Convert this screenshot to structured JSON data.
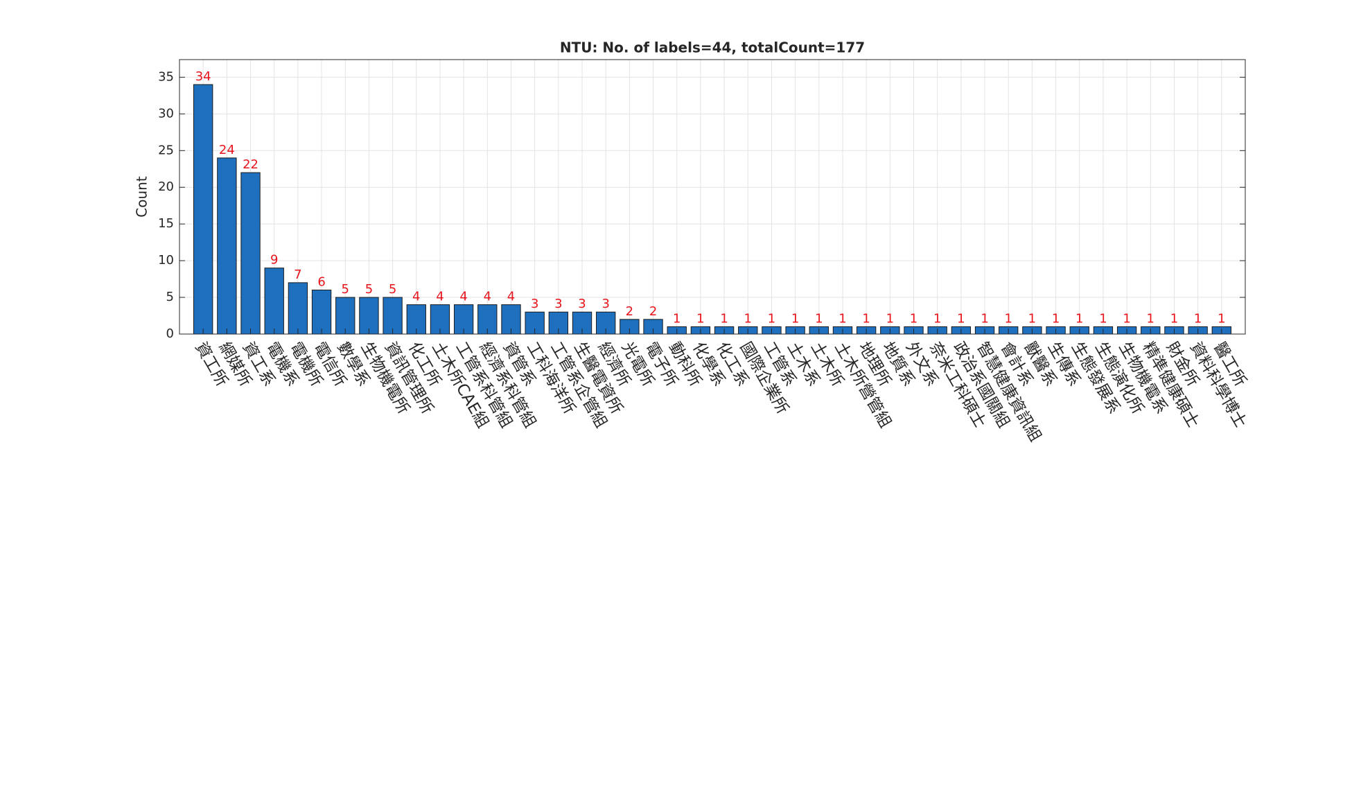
{
  "chart_data": {
    "type": "bar",
    "title": "NTU: No. of labels=44, totalCount=177",
    "y_label": "Count",
    "categories": [
      "資工所",
      "網媒所",
      "資工系",
      "電機系",
      "電機所",
      "電信所",
      "數學系",
      "生物機電所",
      "資訊管理所",
      "化工所",
      "土木所CAE組",
      "工管系科管組",
      "經濟系科管組",
      "資管系",
      "工科海洋所",
      "工管系企管組",
      "生醫電資所",
      "經濟所",
      "光電所",
      "電子所",
      "動科所",
      "化學系",
      "化工系",
      "國際企業所",
      "工管系",
      "土木系",
      "土木所",
      "土木所營管組",
      "地理所",
      "地質系",
      "外文系",
      "奈米工科碩士",
      "政治系國關組",
      "智慧健康資訊組",
      "會計系",
      "獸醫系",
      "生傳系",
      "生態發展系",
      "生態演化所",
      "生物機電系",
      "精準健康碩士",
      "財金所",
      "資料科學博士",
      "醫工所"
    ],
    "values": [
      34,
      24,
      22,
      9,
      7,
      6,
      5,
      5,
      5,
      4,
      4,
      4,
      4,
      4,
      3,
      3,
      3,
      3,
      2,
      2,
      1,
      1,
      1,
      1,
      1,
      1,
      1,
      1,
      1,
      1,
      1,
      1,
      1,
      1,
      1,
      1,
      1,
      1,
      1,
      1,
      1,
      1,
      1,
      1
    ],
    "color": "#1f6fbf",
    "label_color": "#e8141c",
    "ylim": [
      0,
      37.4
    ],
    "yticks": [
      0,
      5,
      10,
      15,
      20,
      25,
      30,
      35
    ],
    "grid": true
  }
}
